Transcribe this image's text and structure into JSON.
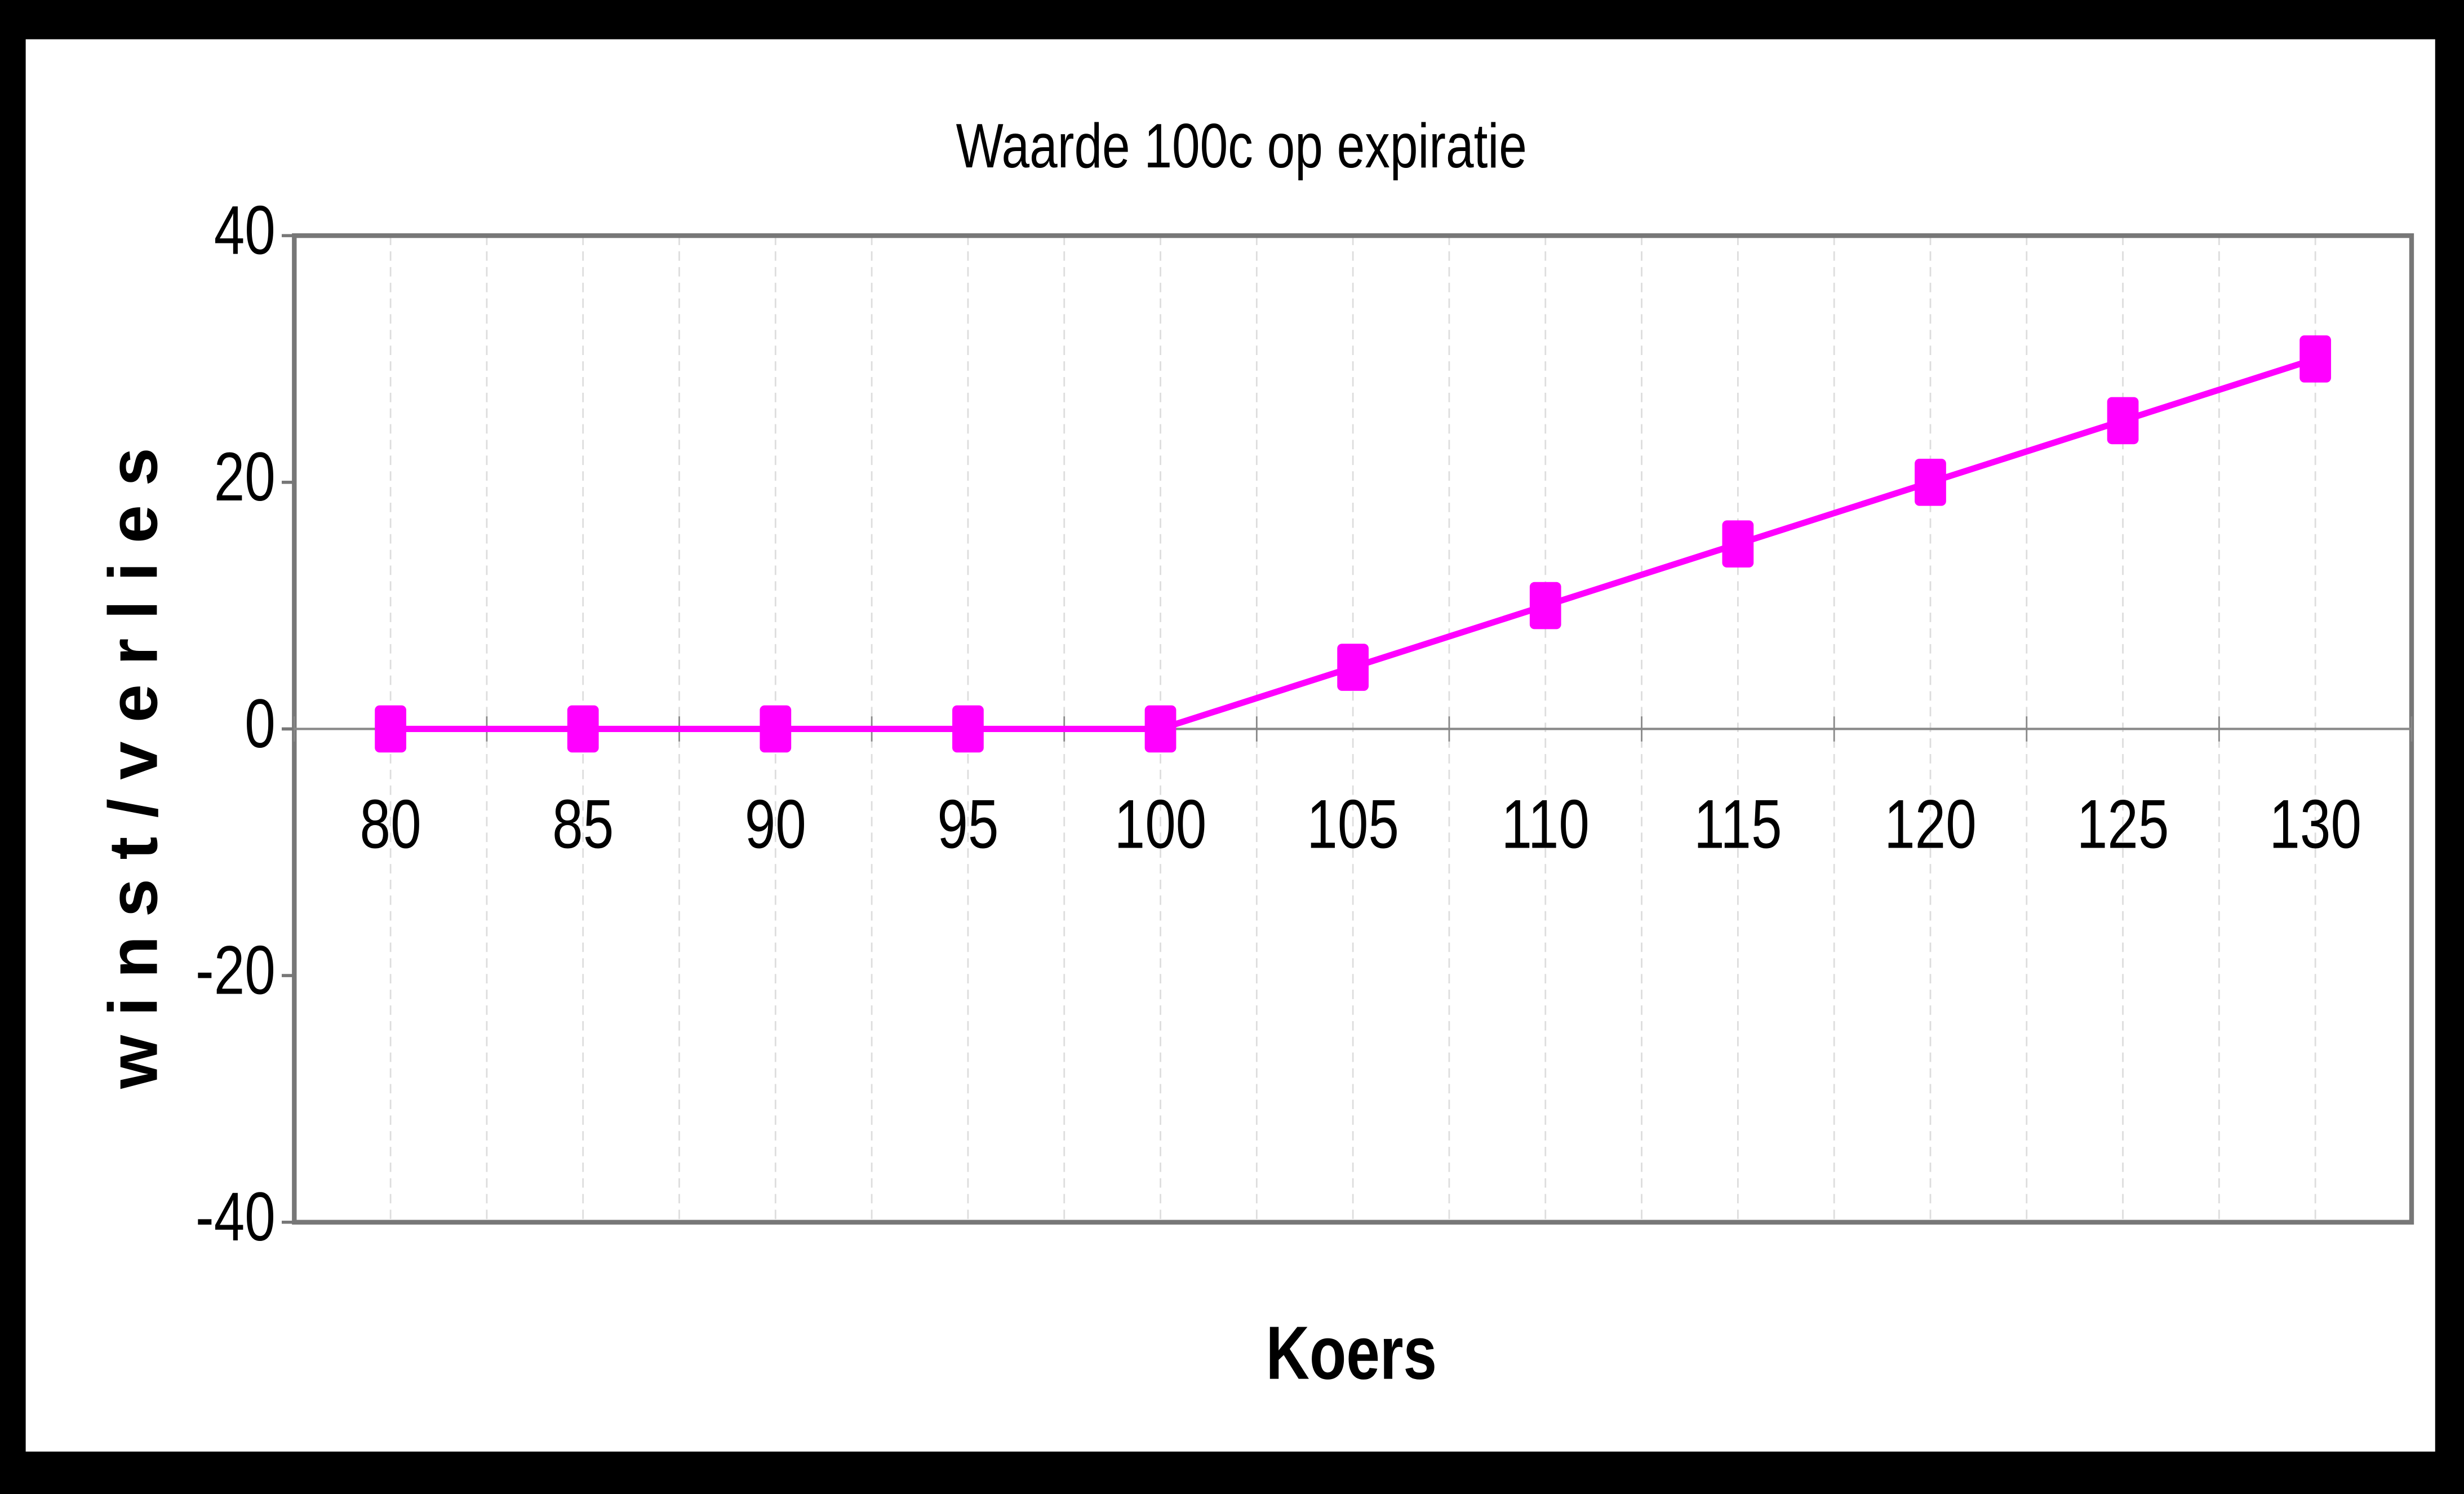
{
  "chart_data": {
    "type": "line",
    "title": "Waarde 100c op expiratie",
    "x_label": "Koers",
    "y_label": "winst/verlies",
    "categories": [
      "80",
      "85",
      "90",
      "95",
      "100",
      "105",
      "110",
      "115",
      "120",
      "125",
      "130"
    ],
    "series": [
      {
        "name": "Waarde",
        "color": "#ff00ff",
        "values": [
          0,
          0,
          0,
          0,
          0,
          5,
          10,
          15,
          20,
          25,
          30
        ]
      }
    ],
    "ylim": [
      -40,
      40
    ],
    "yticks": [
      -40,
      -20,
      0,
      20,
      40
    ],
    "grid": true,
    "legend": false
  }
}
